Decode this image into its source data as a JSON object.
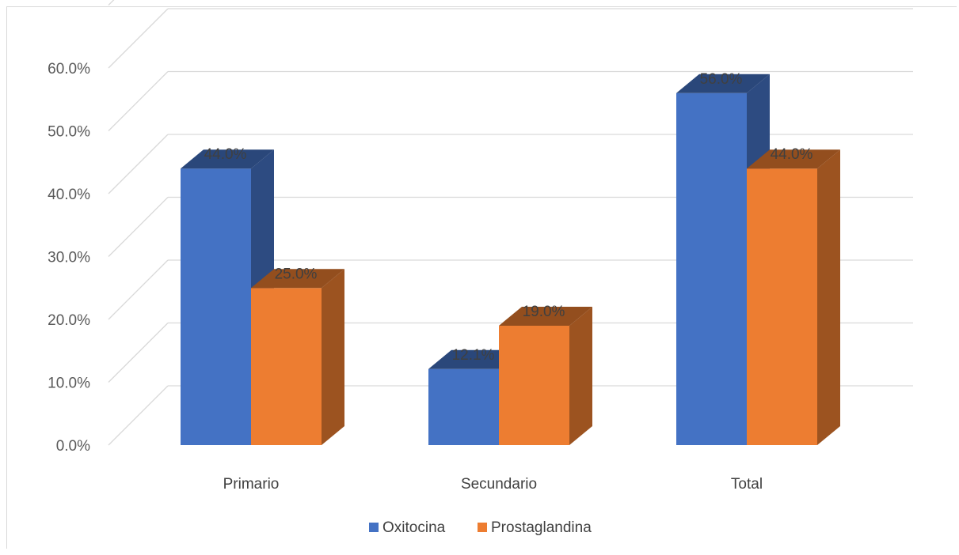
{
  "chart_data": {
    "type": "bar",
    "categories": [
      "Primario",
      "Secundario",
      "Total"
    ],
    "series": [
      {
        "name": "Oxitocina",
        "values": [
          44.0,
          12.1,
          56.0
        ],
        "labels": [
          "44.0%",
          "12.1%",
          "56.0%"
        ],
        "color": "#4472C4"
      },
      {
        "name": "Prostaglandina",
        "values": [
          25.0,
          19.0,
          44.0
        ],
        "labels": [
          "25.0%",
          "19.0%",
          "44.0%"
        ],
        "color": "#ED7D31"
      }
    ],
    "y_ticks": [
      "0.0%",
      "10.0%",
      "20.0%",
      "30.0%",
      "40.0%",
      "50.0%",
      "60.0%"
    ],
    "ylim": [
      0,
      60
    ],
    "style": "3d-clustered-column",
    "grid": true,
    "legend_position": "bottom"
  }
}
